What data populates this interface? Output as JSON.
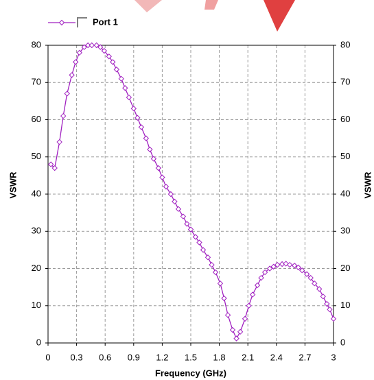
{
  "chart_data": {
    "type": "line",
    "xlabel": "Frequency (GHz)",
    "ylabel": "VSWR",
    "y2label": "VSWR",
    "x": [
      0.03,
      0.07,
      0.12,
      0.16,
      0.2,
      0.25,
      0.29,
      0.33,
      0.38,
      0.42,
      0.46,
      0.51,
      0.55,
      0.59,
      0.64,
      0.68,
      0.72,
      0.77,
      0.81,
      0.85,
      0.9,
      0.94,
      0.98,
      1.03,
      1.07,
      1.11,
      1.16,
      1.2,
      1.24,
      1.29,
      1.33,
      1.37,
      1.42,
      1.46,
      1.5,
      1.55,
      1.59,
      1.63,
      1.68,
      1.72,
      1.76,
      1.81,
      1.85,
      1.89,
      1.94,
      1.98,
      2.02,
      2.07,
      2.11,
      2.15,
      2.2,
      2.24,
      2.28,
      2.33,
      2.37,
      2.41,
      2.46,
      2.5,
      2.54,
      2.59,
      2.63,
      2.67,
      2.72,
      2.76,
      2.8,
      2.85,
      2.89,
      2.93,
      2.96,
      3.0
    ],
    "series": [
      {
        "name": "Port 1",
        "color": "#a020c0",
        "values": [
          48,
          47,
          54,
          61,
          67,
          72,
          75.5,
          78,
          79.5,
          80,
          80,
          80,
          79.5,
          78.5,
          77,
          75.5,
          73.5,
          71,
          68.5,
          66,
          63,
          60.5,
          58,
          55,
          52,
          49.5,
          47,
          44.5,
          42,
          40,
          38,
          36,
          34,
          32,
          30.5,
          28.5,
          27,
          25,
          23,
          21,
          19,
          16,
          12,
          7.5,
          3.5,
          1.2,
          3,
          6.5,
          10,
          13,
          15.5,
          17.5,
          19,
          20,
          20.5,
          21,
          21.2,
          21.3,
          21,
          20.8,
          20.3,
          19.5,
          18.5,
          17.5,
          16,
          14.5,
          12.5,
          10.5,
          9,
          6.5
        ]
      }
    ],
    "xlim": [
      0,
      3
    ],
    "xticks": [
      0,
      0.3,
      0.6,
      0.9,
      1.2,
      1.5,
      1.8,
      2.1,
      2.4,
      2.7,
      3
    ],
    "ylim": [
      0,
      80
    ],
    "yticks": [
      0,
      10,
      20,
      30,
      40,
      50,
      60,
      70,
      80
    ],
    "y2lim": [
      0,
      80
    ],
    "y2ticks": [
      0,
      10,
      20,
      30,
      40,
      50,
      60,
      70,
      80
    ],
    "grid": true,
    "legend": "top-left"
  }
}
